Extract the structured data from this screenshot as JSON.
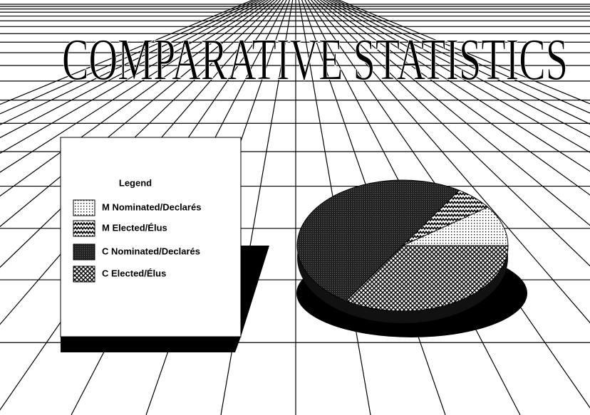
{
  "chart_data": {
    "type": "pie",
    "title": "COMPARATIVE STATISTICS",
    "legend_title": "Legend",
    "categories": [
      "M Nominated/Declarés",
      "M Elected/Élus",
      "C Nominated/Declarés",
      "C Elected/Élus"
    ],
    "values": [
      10,
      6,
      50,
      34
    ]
  }
}
